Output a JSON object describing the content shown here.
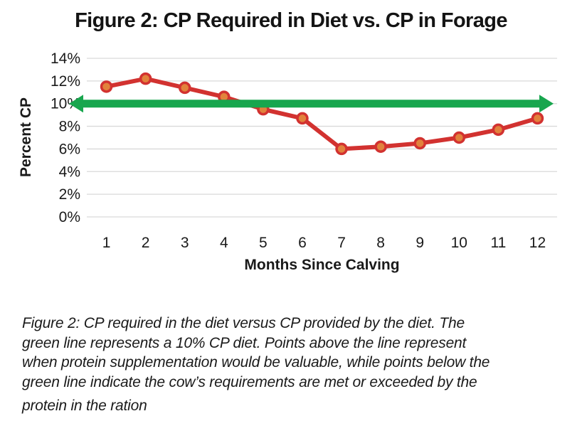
{
  "title": "Figure 2: CP Required in Diet vs. CP in Forage",
  "chart_data": {
    "type": "line",
    "title": "Figure 2: CP Required in Diet vs. CP in Forage",
    "categories": [
      "1",
      "2",
      "3",
      "4",
      "5",
      "6",
      "7",
      "8",
      "9",
      "10",
      "11",
      "12"
    ],
    "values": [
      11.5,
      12.2,
      11.4,
      10.6,
      9.5,
      8.7,
      6.0,
      6.2,
      6.5,
      7.0,
      7.7,
      8.7
    ],
    "xlabel": "Months Since Calving",
    "ylabel": "Percent CP",
    "ylim": [
      0,
      14
    ],
    "ytick_values": [
      0,
      2,
      4,
      6,
      8,
      10,
      12,
      14
    ],
    "ytick_labels": [
      "0%",
      "2%",
      "4%",
      "6%",
      "8%",
      "10%",
      "12%",
      "14%"
    ],
    "grid": "horizontal",
    "legend": "none",
    "reference_line": {
      "value": 10,
      "shape": "double-headed-arrow"
    },
    "colors": {
      "series_line": "#D23230",
      "marker_fill": "#E2823C",
      "reference": "#18A64E",
      "gridline": "#D9D9D9",
      "text": "#1A1A1A"
    }
  },
  "caption": {
    "lines": [
      "Figure 2: CP required in the diet versus CP provided by the diet. The",
      "green line represents a 10% CP diet. Points above the line represent",
      "when protein supplementation would be valuable, while points below the",
      "green line indicate the cow’s requirements are met or exceeded by the",
      "protein in the ration"
    ]
  }
}
